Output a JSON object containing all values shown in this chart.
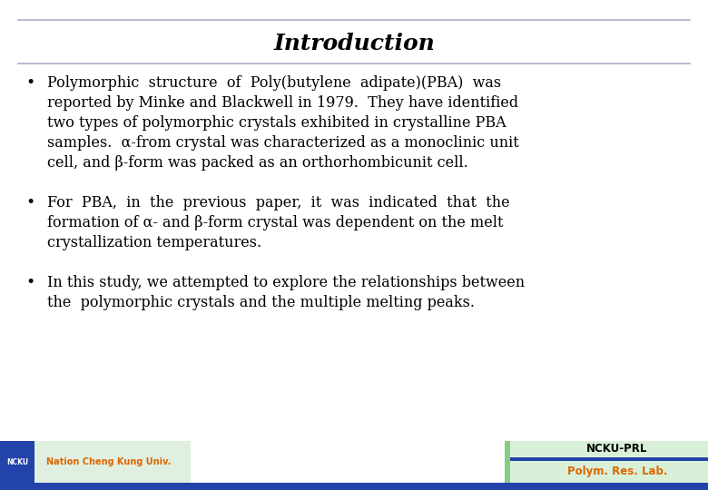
{
  "title": "Introduction",
  "background_color": "#ffffff",
  "title_color": "#000000",
  "title_fontsize": 18,
  "text_color": "#000000",
  "text_fontsize": 11.5,
  "top_line_color": "#9999bb",
  "bullet1_lines": [
    "Polymorphic  structure  of  Poly(butylene  adipate)(PBA)  was",
    "reported by Minke and Blackwell in 1979.  They have identified",
    "two types of polymorphic crystals exhibited in crystalline PBA",
    "samples.  α-from crystal was characterized as a monoclinic unit",
    "cell, and β-form was packed as an orthorhombicunit cell."
  ],
  "bullet2_lines": [
    "For  PBA,  in  the  previous  paper,  it  was  indicated  that  the",
    "formation of α- and β-form crystal was dependent on the melt",
    "crystallization temperatures."
  ],
  "bullet3_lines": [
    "In this study, we attempted to explore the relationships between",
    "the  polymorphic crystals and the multiple melting peaks."
  ],
  "ncku_prl_text": "NCKU-PRL",
  "polym_res_lab_text": "Polym. Res. Lab.",
  "nation_cheng_kung": "Nation Cheng Kung Univ.",
  "blue_color": "#2244aa",
  "green_color": "#aaddaa",
  "orange_color": "#dd6600"
}
